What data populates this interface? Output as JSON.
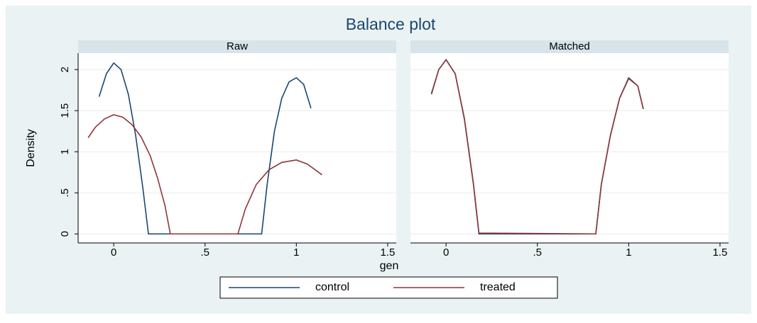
{
  "chart_data": {
    "type": "line",
    "title": "Balance plot",
    "x_label": "gen",
    "y_label": "Density",
    "ylim": [
      -0.11,
      2.2
    ],
    "yticks": [
      0,
      {
        "value": 0.5,
        "label": ".5"
      },
      1,
      {
        "value": 1.5,
        "label": "1.5"
      },
      2
    ],
    "grid": true,
    "panels": [
      {
        "title": "Raw",
        "xlim": [
          -0.195,
          1.547
        ],
        "xticks": [
          0,
          {
            "value": 0.5,
            "label": ".5"
          },
          1,
          {
            "value": 1.5,
            "label": "1.5"
          }
        ],
        "series": [
          {
            "name": "control",
            "color": "#1a476f",
            "x": [
              -0.08,
              -0.04,
              0,
              0.04,
              0.08,
              0.12,
              0.16,
              0.19,
              0.81,
              0.84,
              0.88,
              0.92,
              0.96,
              1.0,
              1.04,
              1.08
            ],
            "values": [
              1.67,
              1.95,
              2.08,
              2.0,
              1.7,
              1.2,
              0.55,
              0,
              0,
              0.6,
              1.25,
              1.65,
              1.85,
              1.9,
              1.82,
              1.53
            ]
          },
          {
            "name": "treated",
            "color": "#90353b",
            "x": [
              -0.14,
              -0.1,
              -0.05,
              0,
              0.05,
              0.1,
              0.15,
              0.2,
              0.24,
              0.28,
              0.31,
              0.68,
              0.72,
              0.78,
              0.85,
              0.92,
              1.0,
              1.06,
              1.14
            ],
            "values": [
              1.17,
              1.3,
              1.4,
              1.45,
              1.42,
              1.33,
              1.18,
              0.95,
              0.68,
              0.35,
              0,
              0,
              0.3,
              0.6,
              0.78,
              0.87,
              0.9,
              0.85,
              0.72
            ]
          }
        ]
      },
      {
        "title": "Matched",
        "xlim": [
          -0.195,
          1.547
        ],
        "xticks": [
          0,
          {
            "value": 0.5,
            "label": ".5"
          },
          1,
          {
            "value": 1.5,
            "label": "1.5"
          }
        ],
        "series": [
          {
            "name": "control",
            "color": "#1a476f",
            "x": [
              -0.08,
              -0.04,
              0,
              0.05,
              0.1,
              0.15,
              0.18,
              0.82,
              0.85,
              0.9,
              0.95,
              1.0,
              1.05,
              1.08
            ],
            "values": [
              1.7,
              2.0,
              2.12,
              1.95,
              1.4,
              0.6,
              0,
              0,
              0.6,
              1.2,
              1.65,
              1.9,
              1.8,
              1.52
            ]
          },
          {
            "name": "treated",
            "color": "#90353b",
            "x": [
              -0.08,
              -0.04,
              0,
              0.05,
              0.1,
              0.15,
              0.18,
              0.82,
              0.85,
              0.9,
              0.95,
              1.0,
              1.05,
              1.08
            ],
            "values": [
              1.71,
              2.0,
              2.12,
              1.95,
              1.41,
              0.61,
              0.01,
              0,
              0.6,
              1.2,
              1.65,
              1.89,
              1.8,
              1.52
            ]
          }
        ]
      }
    ]
  }
}
